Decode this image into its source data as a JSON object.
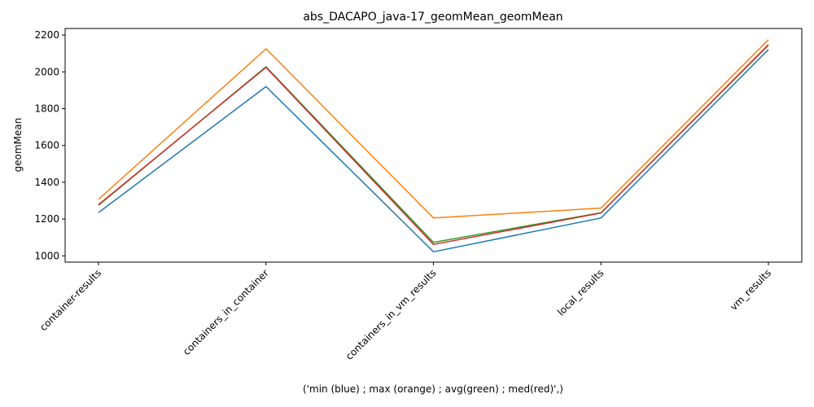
{
  "chart_data": {
    "type": "line",
    "title": "abs_DACAPO_java-17_geomMean_geomMean",
    "xlabel": "('min (blue) ; max (orange) ; avg(green) ; med(red)',)",
    "ylabel": "geomMean",
    "categories": [
      "container-results",
      "containers_in_container",
      "containers_in_vm_results",
      "local_results",
      "vm_results"
    ],
    "ylim": [
      966,
      2236
    ],
    "yticks": [
      1000,
      1200,
      1400,
      1600,
      1800,
      2000,
      2200
    ],
    "grid": false,
    "legend": "none",
    "series": [
      {
        "color": "#1f77b4",
        "values": [
          1235,
          1920,
          1022,
          1206,
          2122
        ]
      },
      {
        "color": "#ff7f0e",
        "values": [
          1307,
          2126,
          1206,
          1260,
          2175
        ]
      },
      {
        "color": "#2ca02c",
        "values": [
          1275,
          2028,
          1073,
          1234,
          2145
        ]
      },
      {
        "color": "#d62728",
        "values": [
          1278,
          2025,
          1062,
          1233,
          2148
        ]
      }
    ]
  }
}
